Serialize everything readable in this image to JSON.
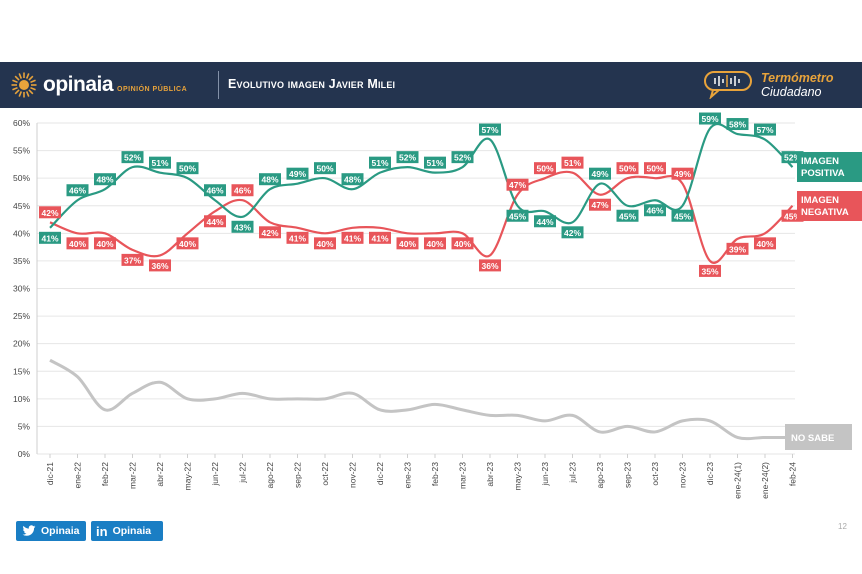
{
  "header": {
    "brand": "opinaia",
    "brand_sub": "OPINIÓN PÚBLICA",
    "title": "Evolutivo imagen Javier Milei",
    "badge_line1": "Termómetro",
    "badge_line2": "Ciudadano"
  },
  "footer": {
    "twitter_label": "Opinaia",
    "linkedin_label": "Opinaia",
    "page_number": "12"
  },
  "colors": {
    "positive": "#2a9a83",
    "negative": "#e8555a",
    "nosabe": "#c4c4c4",
    "header_bg": "#24344f",
    "accent": "#e8a33b"
  },
  "chart_data": {
    "type": "line",
    "categories": [
      "dic-21",
      "ene-22",
      "feb-22",
      "mar-22",
      "abr-22",
      "may-22",
      "jun-22",
      "jul-22",
      "ago-22",
      "sep-22",
      "oct-22",
      "nov-22",
      "dic-22",
      "ene-23",
      "feb-23",
      "mar-23",
      "abr-23",
      "may-23",
      "jun-23",
      "jul-23",
      "ago-23",
      "sep-23",
      "oct-23",
      "nov-23",
      "dic-23",
      "ene-24(1)",
      "ene-24(2)",
      "feb-24"
    ],
    "ylim": [
      0,
      60
    ],
    "yticks": [
      "0%",
      "5%",
      "10%",
      "15%",
      "20%",
      "25%",
      "30%",
      "35%",
      "40%",
      "45%",
      "50%",
      "55%",
      "60%"
    ],
    "grid": true,
    "series": [
      {
        "name": "IMAGEN POSITIVA",
        "values": [
          41,
          46,
          48,
          52,
          51,
          50,
          46,
          43,
          48,
          49,
          50,
          48,
          51,
          52,
          51,
          52,
          57,
          45,
          44,
          42,
          49,
          45,
          46,
          45,
          59,
          58,
          57,
          52
        ],
        "labels": [
          "41%",
          "46%",
          "48%",
          "52%",
          "51%",
          "50%",
          "46%",
          "43%",
          "48%",
          "49%",
          "50%",
          "48%",
          "51%",
          "52%",
          "51%",
          "52%",
          "57%",
          "45%",
          "44%",
          "42%",
          "49%",
          "45%",
          "46%",
          "45%",
          "59%",
          "58%",
          "57%",
          "52%"
        ]
      },
      {
        "name": "IMAGEN NEGATIVA",
        "values": [
          42,
          40,
          40,
          37,
          36,
          40,
          44,
          46,
          42,
          41,
          40,
          41,
          41,
          40,
          40,
          40,
          36,
          47,
          50,
          51,
          47,
          50,
          50,
          49,
          35,
          39,
          40,
          45
        ],
        "labels": [
          "42%",
          "40%",
          "40%",
          "37%",
          "36%",
          "40%",
          "44%",
          "46%",
          "42%",
          "41%",
          "40%",
          "41%",
          "41%",
          "40%",
          "40%",
          "40%",
          "36%",
          "47%",
          "50%",
          "51%",
          "47%",
          "50%",
          "50%",
          "49%",
          "35%",
          "39%",
          "40%",
          "45%"
        ]
      },
      {
        "name": "NO SABE",
        "values": [
          17,
          14,
          8,
          11,
          13,
          10,
          10,
          11,
          10,
          10,
          10,
          11,
          8,
          8,
          9,
          8,
          7,
          7,
          6,
          7,
          4,
          5,
          4,
          6,
          6,
          3,
          3,
          3
        ],
        "labels": []
      }
    ],
    "legend": {
      "positive_line1": "IMAGEN",
      "positive_line2": "POSITIVA",
      "negative_line1": "IMAGEN",
      "negative_line2": "NEGATIVA",
      "nosabe": "NO SABE"
    }
  }
}
